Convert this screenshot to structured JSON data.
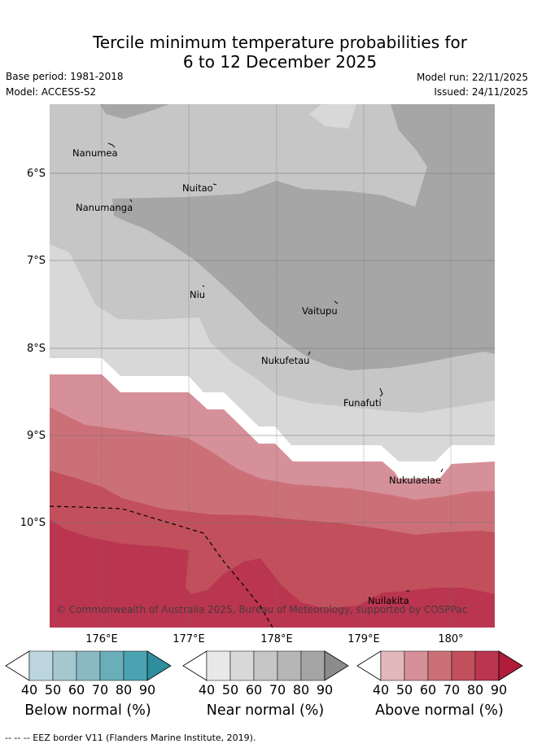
{
  "title": {
    "line1": "Tercile minimum temperature probabilities for",
    "line2": "6 to 12 December 2025"
  },
  "meta": {
    "base_period": "Base period: 1981-2018",
    "model": "Model: ACCESS-S2",
    "model_run": "Model run: 22/11/2025",
    "issued": "Issued: 24/11/2025"
  },
  "map": {
    "latitude_labels": [
      "6°S",
      "7°S",
      "8°S",
      "9°S",
      "10°S"
    ],
    "longitude_labels": [
      "176°E",
      "177°E",
      "178°E",
      "179°E",
      "180°"
    ],
    "places": [
      "Nanumea",
      "Nuitao",
      "Nanumanga",
      "Niu",
      "Vaitupu",
      "Nukufetau",
      "Funafuti",
      "Nukulaelae",
      "Nuilakita"
    ],
    "copyright": "© Commonwealth of Australia 2025, Bureau of Meteorology, supported by COSPPac"
  },
  "colorbars": [
    {
      "title": "Below normal (%)",
      "ticks": [
        "40",
        "50",
        "60",
        "70",
        "80",
        "90"
      ],
      "colors": [
        "#ffffff",
        "#bdd6dd",
        "#a5c8cf",
        "#8ab9c4",
        "#6aaeba",
        "#4aa3b1",
        "#2f8e9e"
      ]
    },
    {
      "title": "Near normal (%)",
      "ticks": [
        "40",
        "50",
        "60",
        "70",
        "80",
        "90"
      ],
      "colors": [
        "#ffffff",
        "#e8e8e8",
        "#d8d8d8",
        "#c6c6c6",
        "#b6b6b6",
        "#a5a5a5",
        "#8c8c8c"
      ]
    },
    {
      "title": "Above normal (%)",
      "ticks": [
        "40",
        "50",
        "60",
        "70",
        "80",
        "90"
      ],
      "colors": [
        "#ffffff",
        "#e2b8bd",
        "#d69099",
        "#cc7078",
        "#c24f5c",
        "#ba3550",
        "#b01c3a"
      ]
    }
  ],
  "footnote": "--  --  -- EEZ border V11 (Flanders Marine Institute, 2019)."
}
